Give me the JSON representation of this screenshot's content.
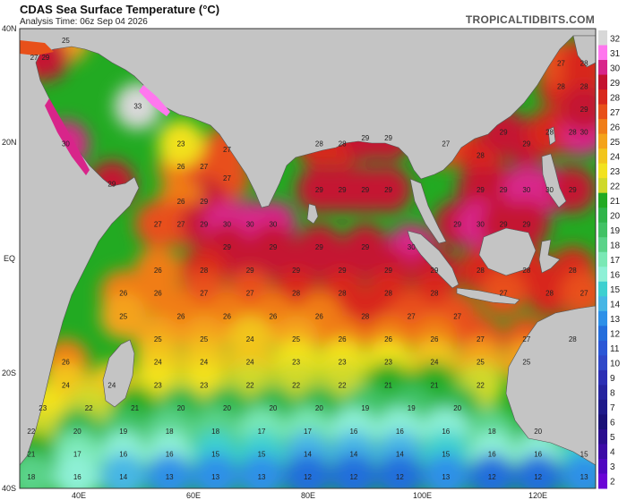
{
  "header": {
    "title": "CDAS Sea Surface Temperature (°C)",
    "subtitle": "Analysis Time: 06z Sep 04 2026",
    "brand": "TROPICALTIDBITS.COM"
  },
  "axes": {
    "lat_labels": [
      "40N",
      "20N",
      "EQ",
      "20S",
      "40S"
    ],
    "lon_labels": [
      "40E",
      "60E",
      "80E",
      "100E",
      "120E"
    ]
  },
  "colorbar": {
    "labels": [
      "32",
      "31",
      "30",
      "29",
      "28",
      "27",
      "26",
      "25",
      "24",
      "23",
      "22",
      "21",
      "20",
      "19",
      "18",
      "17",
      "16",
      "15",
      "14",
      "13",
      "12",
      "11",
      "10",
      "9",
      "8",
      "7",
      "6",
      "5",
      "4",
      "3",
      "2"
    ],
    "colors": [
      "#d8d8d8",
      "#ff77ee",
      "#d8258a",
      "#c41230",
      "#d8281d",
      "#e8501a",
      "#f07d18",
      "#f4a31a",
      "#f2c51c",
      "#f2e21e",
      "#cfd92b",
      "#22aa22",
      "#2fb54a",
      "#41c265",
      "#5ad389",
      "#7ae8b5",
      "#8ef0d6",
      "#3dd0d0",
      "#46b6e5",
      "#2d90e8",
      "#246edc",
      "#2b57d6",
      "#3048c8",
      "#2c2fb4",
      "#26249f",
      "#1f1a8a",
      "#1a1177",
      "#2a0d8e",
      "#3c0aa6",
      "#4f06c0",
      "#6a04d6"
    ]
  },
  "icons": {
    "land": "land-mask",
    "brand": "brand-logo"
  },
  "chart_data": {
    "type": "heatmap",
    "title": "CDAS Sea Surface Temperature (°C)",
    "subtitle": "Analysis Time: 06z Sep 04 2026",
    "units": "°C",
    "xlim": [
      30,
      130
    ],
    "ylim": [
      -40,
      40
    ],
    "x_ticks": [
      "40E",
      "60E",
      "80E",
      "100E",
      "120E"
    ],
    "y_ticks": [
      "40N",
      "20N",
      "EQ",
      "20S",
      "40S"
    ],
    "colorbar_range": [
      2,
      32
    ],
    "points": [
      {
        "lon": 38,
        "lat": 38,
        "v": 25
      },
      {
        "lon": 32.5,
        "lat": 35,
        "v": 27
      },
      {
        "lon": 34.5,
        "lat": 35,
        "v": 29
      },
      {
        "lon": 50.5,
        "lat": 26.5,
        "v": 33
      },
      {
        "lon": 38,
        "lat": 20,
        "v": 30
      },
      {
        "lon": 46,
        "lat": 13,
        "v": 29
      },
      {
        "lon": 58,
        "lat": 16,
        "v": 26
      },
      {
        "lon": 62,
        "lat": 16,
        "v": 27
      },
      {
        "lon": 58,
        "lat": 20,
        "v": 23
      },
      {
        "lon": 66,
        "lat": 19,
        "v": 27
      },
      {
        "lon": 66,
        "lat": 14,
        "v": 27
      },
      {
        "lon": 62,
        "lat": 10,
        "v": 29
      },
      {
        "lon": 58,
        "lat": 10,
        "v": 26
      },
      {
        "lon": 54,
        "lat": 6,
        "v": 27
      },
      {
        "lon": 58,
        "lat": 6,
        "v": 27
      },
      {
        "lon": 62,
        "lat": 6,
        "v": 29
      },
      {
        "lon": 66,
        "lat": 6,
        "v": 30
      },
      {
        "lon": 70,
        "lat": 6,
        "v": 30
      },
      {
        "lon": 74,
        "lat": 6,
        "v": 30
      },
      {
        "lon": 82,
        "lat": 20,
        "v": 28
      },
      {
        "lon": 86,
        "lat": 20,
        "v": 28
      },
      {
        "lon": 82,
        "lat": 12,
        "v": 29
      },
      {
        "lon": 86,
        "lat": 12,
        "v": 29
      },
      {
        "lon": 90,
        "lat": 12,
        "v": 29
      },
      {
        "lon": 94,
        "lat": 12,
        "v": 29
      },
      {
        "lon": 90,
        "lat": 21,
        "v": 29
      },
      {
        "lon": 94,
        "lat": 21,
        "v": 29
      },
      {
        "lon": 66,
        "lat": 2,
        "v": 29
      },
      {
        "lon": 74,
        "lat": 2,
        "v": 29
      },
      {
        "lon": 82,
        "lat": 2,
        "v": 29
      },
      {
        "lon": 90,
        "lat": 2,
        "v": 29
      },
      {
        "lon": 98,
        "lat": 2,
        "v": 30
      },
      {
        "lon": 54,
        "lat": -2,
        "v": 26
      },
      {
        "lon": 62,
        "lat": -2,
        "v": 28
      },
      {
        "lon": 70,
        "lat": -2,
        "v": 29
      },
      {
        "lon": 78,
        "lat": -2,
        "v": 29
      },
      {
        "lon": 86,
        "lat": -2,
        "v": 29
      },
      {
        "lon": 94,
        "lat": -2,
        "v": 29
      },
      {
        "lon": 102,
        "lat": -2,
        "v": 29
      },
      {
        "lon": 48,
        "lat": -6,
        "v": 26
      },
      {
        "lon": 54,
        "lat": -6,
        "v": 26
      },
      {
        "lon": 62,
        "lat": -6,
        "v": 27
      },
      {
        "lon": 70,
        "lat": -6,
        "v": 27
      },
      {
        "lon": 78,
        "lat": -6,
        "v": 28
      },
      {
        "lon": 86,
        "lat": -6,
        "v": 28
      },
      {
        "lon": 94,
        "lat": -6,
        "v": 28
      },
      {
        "lon": 102,
        "lat": -6,
        "v": 28
      },
      {
        "lon": 48,
        "lat": -10,
        "v": 25
      },
      {
        "lon": 58,
        "lat": -10,
        "v": 26
      },
      {
        "lon": 66,
        "lat": -10,
        "v": 26
      },
      {
        "lon": 74,
        "lat": -10,
        "v": 26
      },
      {
        "lon": 82,
        "lat": -10,
        "v": 26
      },
      {
        "lon": 90,
        "lat": -10,
        "v": 28
      },
      {
        "lon": 98,
        "lat": -10,
        "v": 27
      },
      {
        "lon": 106,
        "lat": -10,
        "v": 27
      },
      {
        "lon": 54,
        "lat": -14,
        "v": 25
      },
      {
        "lon": 62,
        "lat": -14,
        "v": 25
      },
      {
        "lon": 70,
        "lat": -14,
        "v": 24
      },
      {
        "lon": 78,
        "lat": -14,
        "v": 25
      },
      {
        "lon": 86,
        "lat": -14,
        "v": 26
      },
      {
        "lon": 94,
        "lat": -14,
        "v": 26
      },
      {
        "lon": 102,
        "lat": -14,
        "v": 26
      },
      {
        "lon": 110,
        "lat": -14,
        "v": 27
      },
      {
        "lon": 118,
        "lat": -14,
        "v": 27
      },
      {
        "lon": 126,
        "lat": -14,
        "v": 28
      },
      {
        "lon": 38,
        "lat": -18,
        "v": 26
      },
      {
        "lon": 54,
        "lat": -18,
        "v": 24
      },
      {
        "lon": 62,
        "lat": -18,
        "v": 24
      },
      {
        "lon": 70,
        "lat": -18,
        "v": 24
      },
      {
        "lon": 78,
        "lat": -18,
        "v": 23
      },
      {
        "lon": 86,
        "lat": -18,
        "v": 23
      },
      {
        "lon": 94,
        "lat": -18,
        "v": 23
      },
      {
        "lon": 102,
        "lat": -18,
        "v": 24
      },
      {
        "lon": 110,
        "lat": -18,
        "v": 25
      },
      {
        "lon": 118,
        "lat": -18,
        "v": 25
      },
      {
        "lon": 38,
        "lat": -22,
        "v": 24
      },
      {
        "lon": 46,
        "lat": -22,
        "v": 24
      },
      {
        "lon": 54,
        "lat": -22,
        "v": 23
      },
      {
        "lon": 62,
        "lat": -22,
        "v": 23
      },
      {
        "lon": 70,
        "lat": -22,
        "v": 22
      },
      {
        "lon": 78,
        "lat": -22,
        "v": 22
      },
      {
        "lon": 86,
        "lat": -22,
        "v": 22
      },
      {
        "lon": 94,
        "lat": -22,
        "v": 21
      },
      {
        "lon": 102,
        "lat": -22,
        "v": 21
      },
      {
        "lon": 110,
        "lat": -22,
        "v": 22
      },
      {
        "lon": 34,
        "lat": -26,
        "v": 23
      },
      {
        "lon": 42,
        "lat": -26,
        "v": 22
      },
      {
        "lon": 50,
        "lat": -26,
        "v": 21
      },
      {
        "lon": 58,
        "lat": -26,
        "v": 20
      },
      {
        "lon": 66,
        "lat": -26,
        "v": 20
      },
      {
        "lon": 74,
        "lat": -26,
        "v": 20
      },
      {
        "lon": 82,
        "lat": -26,
        "v": 20
      },
      {
        "lon": 90,
        "lat": -26,
        "v": 19
      },
      {
        "lon": 98,
        "lat": -26,
        "v": 19
      },
      {
        "lon": 106,
        "lat": -26,
        "v": 20
      },
      {
        "lon": 32,
        "lat": -30,
        "v": 22
      },
      {
        "lon": 40,
        "lat": -30,
        "v": 20
      },
      {
        "lon": 48,
        "lat": -30,
        "v": 19
      },
      {
        "lon": 56,
        "lat": -30,
        "v": 18
      },
      {
        "lon": 64,
        "lat": -30,
        "v": 18
      },
      {
        "lon": 72,
        "lat": -30,
        "v": 17
      },
      {
        "lon": 80,
        "lat": -30,
        "v": 17
      },
      {
        "lon": 88,
        "lat": -30,
        "v": 16
      },
      {
        "lon": 96,
        "lat": -30,
        "v": 16
      },
      {
        "lon": 104,
        "lat": -30,
        "v": 16
      },
      {
        "lon": 112,
        "lat": -30,
        "v": 18
      },
      {
        "lon": 120,
        "lat": -30,
        "v": 20
      },
      {
        "lon": 32,
        "lat": -34,
        "v": 21
      },
      {
        "lon": 40,
        "lat": -34,
        "v": 17
      },
      {
        "lon": 48,
        "lat": -34,
        "v": 16
      },
      {
        "lon": 56,
        "lat": -34,
        "v": 16
      },
      {
        "lon": 64,
        "lat": -34,
        "v": 15
      },
      {
        "lon": 72,
        "lat": -34,
        "v": 15
      },
      {
        "lon": 80,
        "lat": -34,
        "v": 14
      },
      {
        "lon": 88,
        "lat": -34,
        "v": 14
      },
      {
        "lon": 96,
        "lat": -34,
        "v": 14
      },
      {
        "lon": 104,
        "lat": -34,
        "v": 15
      },
      {
        "lon": 112,
        "lat": -34,
        "v": 16
      },
      {
        "lon": 120,
        "lat": -34,
        "v": 16
      },
      {
        "lon": 128,
        "lat": -34,
        "v": 15
      },
      {
        "lon": 32,
        "lat": -38,
        "v": 18
      },
      {
        "lon": 40,
        "lat": -38,
        "v": 16
      },
      {
        "lon": 48,
        "lat": -38,
        "v": 14
      },
      {
        "lon": 56,
        "lat": -38,
        "v": 13
      },
      {
        "lon": 64,
        "lat": -38,
        "v": 13
      },
      {
        "lon": 72,
        "lat": -38,
        "v": 13
      },
      {
        "lon": 80,
        "lat": -38,
        "v": 12
      },
      {
        "lon": 88,
        "lat": -38,
        "v": 12
      },
      {
        "lon": 96,
        "lat": -38,
        "v": 12
      },
      {
        "lon": 104,
        "lat": -38,
        "v": 13
      },
      {
        "lon": 112,
        "lat": -38,
        "v": 12
      },
      {
        "lon": 120,
        "lat": -38,
        "v": 12
      },
      {
        "lon": 128,
        "lat": -38,
        "v": 13
      },
      {
        "lon": 104,
        "lat": 20,
        "v": 27
      },
      {
        "lon": 110,
        "lat": 18,
        "v": 28
      },
      {
        "lon": 114,
        "lat": 22,
        "v": 29
      },
      {
        "lon": 118,
        "lat": 20,
        "v": 29
      },
      {
        "lon": 122,
        "lat": 22,
        "v": 28
      },
      {
        "lon": 126,
        "lat": 22,
        "v": 28
      },
      {
        "lon": 128,
        "lat": 22,
        "v": 30
      },
      {
        "lon": 110,
        "lat": 12,
        "v": 29
      },
      {
        "lon": 114,
        "lat": 12,
        "v": 29
      },
      {
        "lon": 118,
        "lat": 12,
        "v": 30
      },
      {
        "lon": 122,
        "lat": 12,
        "v": 30
      },
      {
        "lon": 126,
        "lat": 12,
        "v": 29
      },
      {
        "lon": 106,
        "lat": 6,
        "v": 29
      },
      {
        "lon": 110,
        "lat": 6,
        "v": 30
      },
      {
        "lon": 114,
        "lat": 6,
        "v": 29
      },
      {
        "lon": 118,
        "lat": 6,
        "v": 29
      },
      {
        "lon": 124,
        "lat": 30,
        "v": 28
      },
      {
        "lon": 124,
        "lat": 34,
        "v": 27
      },
      {
        "lon": 128,
        "lat": 34,
        "v": 28
      },
      {
        "lon": 128,
        "lat": 30,
        "v": 28
      },
      {
        "lon": 128,
        "lat": 26,
        "v": 29
      },
      {
        "lon": 110,
        "lat": -2,
        "v": 28
      },
      {
        "lon": 118,
        "lat": -2,
        "v": 28
      },
      {
        "lon": 126,
        "lat": -2,
        "v": 28
      },
      {
        "lon": 114,
        "lat": -6,
        "v": 27
      },
      {
        "lon": 122,
        "lat": -6,
        "v": 28
      },
      {
        "lon": 128,
        "lat": -6,
        "v": 27
      }
    ]
  }
}
